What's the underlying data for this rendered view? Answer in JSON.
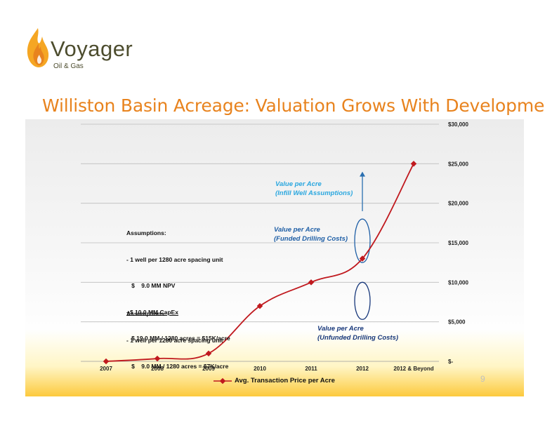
{
  "brand": {
    "name": "Voyager",
    "sub": "Oil & Gas",
    "colors": {
      "word": "#4d4d2e",
      "flame_outer": "#f5a623",
      "flame_inner": "#e8831e"
    }
  },
  "slide": {
    "title": "Williston Basin Acreage: Valuation Grows With Development",
    "page_number": "9"
  },
  "chart_data": {
    "type": "line",
    "categories": [
      "2007",
      "2008",
      "2009",
      "2010",
      "2011",
      "2012",
      "2012 & Beyond"
    ],
    "series": [
      {
        "name": "Avg. Transaction Price per Acre",
        "values": [
          0,
          350,
          1000,
          7000,
          10000,
          13000,
          25000
        ],
        "color": "#c0191e"
      }
    ],
    "y_axis": {
      "position": "right",
      "min": 0,
      "max": 30000,
      "ticks": [
        "$-",
        "$5,000",
        "$10,000",
        "$15,000",
        "$20,000",
        "$25,000",
        "$30,000"
      ]
    },
    "ylim": [
      0,
      30000
    ],
    "grid": true,
    "legend": "bottom",
    "annotations": [
      {
        "id": "infill",
        "lines": [
          "Value per Acre",
          "(Infill Well Assumptions)"
        ],
        "color": "#2aa7df"
      },
      {
        "id": "funded",
        "lines": [
          "Value per Acre",
          "(Funded Drilling Costs)"
        ],
        "color": "#1f5fa6"
      },
      {
        "id": "unfunded",
        "lines": [
          "Value per Acre",
          "(Unfunded Drilling Costs)"
        ],
        "color": "#17377a"
      }
    ],
    "assumptions_funded": [
      "Assumptions:",
      "- 1 well per 1280 acre spacing unit",
      "   $    9.0 MM NPV",
      "+$ 10.0 MM CapEx",
      "   $ 19.0 MM / 1280 acres = $15K/acre"
    ],
    "assumptions_unfunded": [
      "Assumptions:",
      "- 1 well per 1280 acre spacing unit",
      "   $    9.0 MM / 1280 acres = $7K/acre"
    ]
  }
}
